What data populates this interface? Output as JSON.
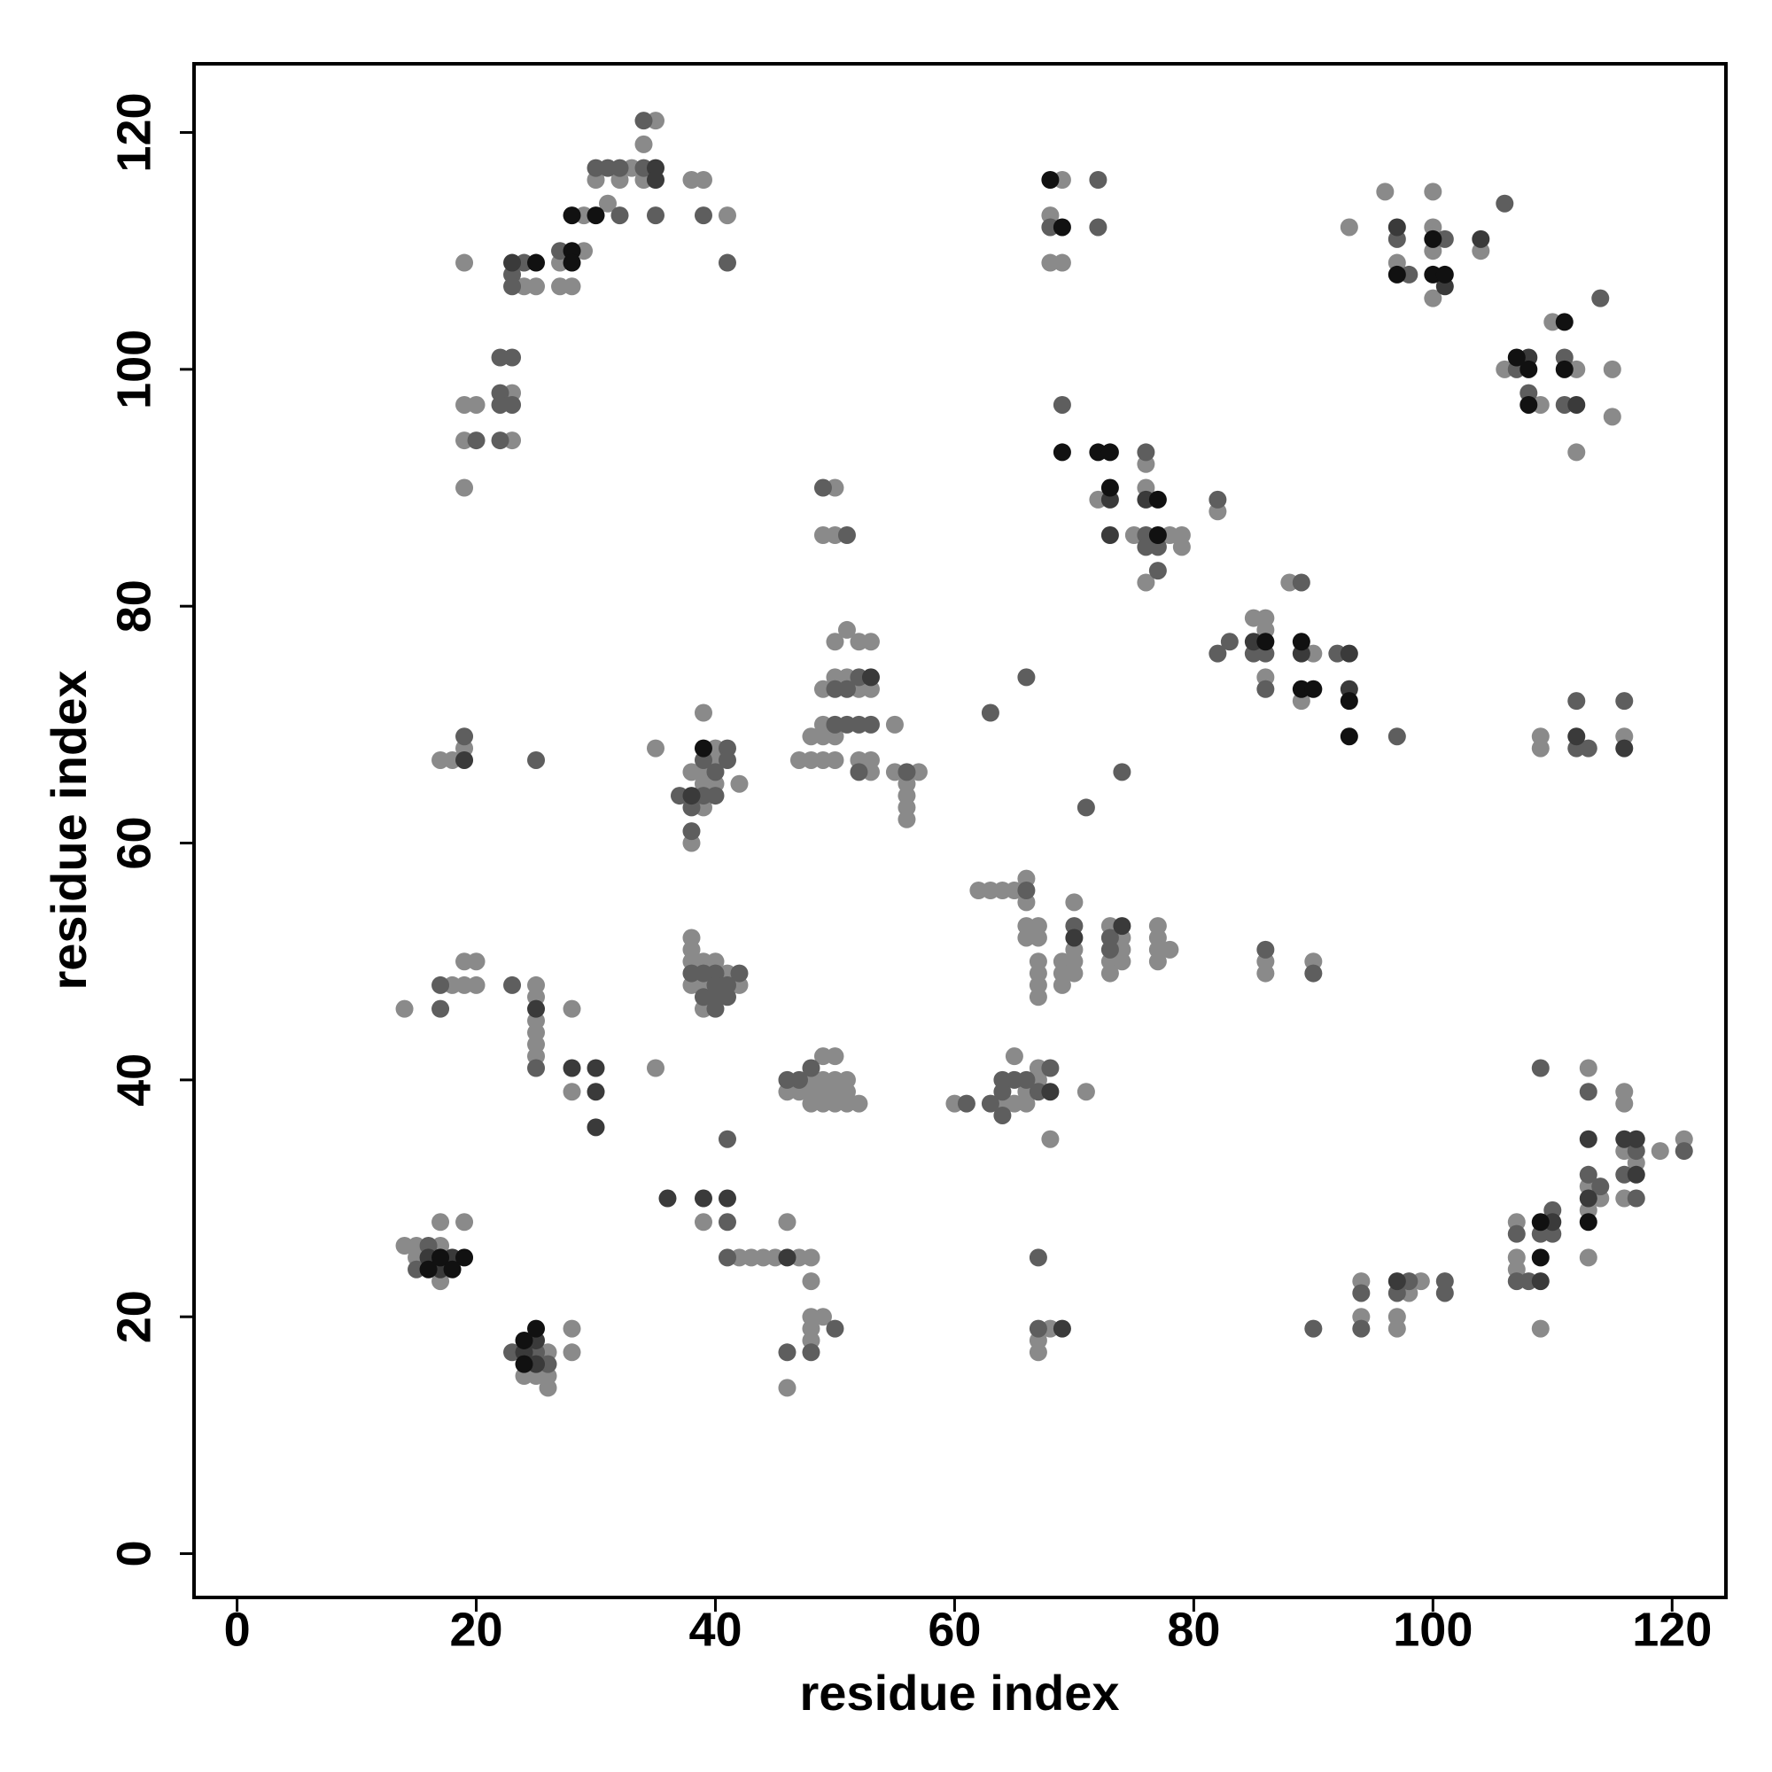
{
  "chart_data": {
    "type": "scatter",
    "xlabel": "residue index",
    "ylabel": "residue index",
    "xlim": [
      -3.6,
      124.5
    ],
    "ylim": [
      -3.7,
      125.8
    ],
    "xticks": [
      0,
      20,
      40,
      60,
      80,
      100,
      120
    ],
    "yticks": [
      0,
      20,
      40,
      60,
      80,
      100,
      120
    ],
    "grid": false,
    "series": [
      {
        "color": "#8a8a8a",
        "x": [
          19,
          24,
          25,
          27,
          27,
          28,
          29,
          29,
          30,
          31,
          32,
          33,
          34,
          34,
          35,
          38,
          39,
          41,
          23,
          23,
          19,
          20,
          19,
          19,
          69,
          68,
          68,
          69,
          72,
          76,
          76,
          75,
          78,
          79,
          79,
          76,
          82,
          50,
          49,
          50,
          93,
          96,
          97,
          100,
          100,
          100,
          100,
          104,
          106,
          109,
          110,
          112,
          112,
          115,
          115,
          85,
          86,
          86,
          86,
          88,
          90,
          89,
          109,
          109,
          116,
          51,
          50,
          52,
          53,
          49,
          50,
          51,
          52,
          53,
          49,
          48,
          49,
          50,
          47,
          48,
          49,
          50,
          52,
          53,
          53,
          55,
          55,
          57,
          56,
          56,
          56,
          56,
          39,
          40,
          40,
          38,
          39,
          39,
          40,
          42,
          39,
          38,
          35,
          17,
          18,
          19,
          62,
          63,
          64,
          65,
          66,
          66,
          66,
          67,
          66,
          67,
          67,
          67,
          67,
          67,
          69,
          70,
          69,
          69,
          70,
          70,
          70,
          73,
          74,
          74,
          73,
          74,
          73,
          77,
          77,
          77,
          78,
          77,
          86,
          86,
          90,
          38,
          38,
          38,
          39,
          40,
          41,
          38,
          39,
          42,
          39,
          14,
          18,
          19,
          20,
          19,
          20,
          25,
          25,
          25,
          25,
          25,
          25,
          28,
          28,
          35,
          49,
          50,
          48,
          49,
          50,
          51,
          46,
          47,
          48,
          49,
          50,
          51,
          48,
          49,
          50,
          51,
          52,
          60,
          64,
          65,
          66,
          67,
          67,
          71,
          65,
          66,
          68,
          113,
          116,
          116,
          116,
          119,
          121,
          117,
          113,
          114,
          116,
          113,
          107,
          107,
          107,
          113,
          109,
          94,
          94,
          98,
          99,
          97,
          97,
          14,
          15,
          15,
          17,
          17,
          17,
          19,
          26,
          24,
          25,
          26,
          26,
          28,
          28,
          39,
          42,
          43,
          44,
          45,
          47,
          48,
          46,
          48,
          48,
          48,
          49,
          48,
          46,
          68,
          67,
          67
        ],
        "y": [
          109,
          107,
          107,
          109,
          107,
          107,
          110,
          113,
          116,
          114,
          116,
          117,
          116,
          119,
          121,
          116,
          116,
          113,
          98,
          94,
          97,
          97,
          94,
          90,
          116,
          113,
          109,
          109,
          89,
          92,
          90,
          86,
          86,
          86,
          85,
          82,
          88,
          90,
          86,
          86,
          112,
          115,
          109,
          115,
          112,
          110,
          106,
          110,
          100,
          97,
          104,
          100,
          93,
          100,
          96,
          79,
          79,
          78,
          74,
          82,
          76,
          72,
          69,
          68,
          69,
          78,
          77,
          77,
          77,
          73,
          74,
          74,
          73,
          73,
          70,
          69,
          69,
          69,
          67,
          67,
          67,
          67,
          67,
          67,
          66,
          70,
          66,
          66,
          65,
          64,
          63,
          62,
          71,
          68,
          67,
          66,
          66,
          65,
          65,
          65,
          63,
          60,
          68,
          67,
          67,
          68,
          56,
          56,
          56,
          56,
          57,
          55,
          53,
          53,
          52,
          52,
          50,
          49,
          48,
          47,
          50,
          50,
          49,
          48,
          55,
          51,
          49,
          53,
          52,
          51,
          50,
          50,
          49,
          53,
          52,
          51,
          51,
          50,
          50,
          49,
          50,
          52,
          51,
          50,
          50,
          50,
          49,
          48,
          48,
          48,
          46,
          46,
          48,
          48,
          48,
          50,
          50,
          48,
          47,
          45,
          44,
          43,
          42,
          46,
          39,
          41,
          42,
          42,
          40,
          40,
          40,
          40,
          39,
          39,
          39,
          39,
          39,
          39,
          38,
          38,
          38,
          38,
          38,
          38,
          38,
          42,
          39,
          40,
          41,
          39,
          38,
          38,
          35,
          41,
          39,
          38,
          34,
          34,
          35,
          33,
          31,
          30,
          30,
          29,
          28,
          25,
          24,
          25,
          19,
          23,
          20,
          22,
          23,
          20,
          19,
          26,
          26,
          25,
          26,
          23,
          28,
          28,
          17,
          15,
          15,
          15,
          14,
          19,
          17,
          28,
          25,
          25,
          25,
          25,
          25,
          25,
          28,
          23,
          20,
          19,
          20,
          18,
          14,
          19,
          18,
          17
        ]
      },
      {
        "color": "#5e5e5e",
        "x": [
          23,
          23,
          24,
          27,
          30,
          31,
          32,
          32,
          34,
          34,
          35,
          39,
          41,
          22,
          23,
          22,
          22,
          23,
          22,
          20,
          68,
          72,
          72,
          69,
          76,
          76,
          76,
          77,
          77,
          82,
          49,
          51,
          97,
          98,
          101,
          106,
          107,
          108,
          111,
          111,
          114,
          82,
          83,
          85,
          86,
          86,
          89,
          92,
          97,
          112,
          112,
          113,
          116,
          52,
          50,
          51,
          50,
          51,
          52,
          53,
          52,
          56,
          41,
          39,
          41,
          40,
          37,
          39,
          40,
          38,
          38,
          19,
          25,
          74,
          71,
          66,
          63,
          66,
          70,
          73,
          73,
          86,
          90,
          42,
          38,
          39,
          40,
          40,
          41,
          39,
          40,
          41,
          40,
          17,
          17,
          23,
          25,
          41,
          47,
          48,
          46,
          61,
          63,
          64,
          64,
          64,
          65,
          66,
          68,
          67,
          109,
          113,
          117,
          121,
          113,
          116,
          114,
          117,
          110,
          109,
          110,
          107,
          107,
          108,
          94,
          94,
          97,
          98,
          101,
          101,
          90,
          16,
          15,
          23,
          25,
          26,
          41,
          41,
          50,
          46,
          48,
          67,
          67
        ],
        "y": [
          108,
          107,
          109,
          110,
          117,
          117,
          117,
          113,
          117,
          121,
          113,
          113,
          109,
          101,
          101,
          98,
          97,
          97,
          94,
          94,
          112,
          116,
          112,
          97,
          93,
          86,
          85,
          85,
          83,
          89,
          90,
          86,
          111,
          108,
          111,
          114,
          100,
          98,
          101,
          97,
          106,
          76,
          77,
          76,
          76,
          73,
          82,
          76,
          69,
          72,
          68,
          68,
          72,
          74,
          73,
          73,
          70,
          70,
          70,
          70,
          66,
          66,
          68,
          67,
          67,
          66,
          64,
          64,
          64,
          63,
          61,
          69,
          67,
          66,
          63,
          74,
          71,
          56,
          53,
          52,
          51,
          51,
          49,
          49,
          49,
          49,
          49,
          48,
          48,
          47,
          47,
          47,
          46,
          48,
          46,
          48,
          41,
          35,
          40,
          41,
          40,
          38,
          38,
          37,
          39,
          40,
          40,
          40,
          41,
          39,
          41,
          39,
          34,
          34,
          32,
          32,
          31,
          30,
          29,
          27,
          27,
          27,
          23,
          23,
          22,
          19,
          22,
          23,
          23,
          22,
          19,
          26,
          24,
          17,
          17,
          16,
          28,
          25,
          19,
          17,
          17,
          25,
          19
        ]
      },
      {
        "color": "#3a3a3a",
        "x": [
          23,
          35,
          35,
          73,
          76,
          73,
          97,
          101,
          104,
          108,
          112,
          85,
          89,
          93,
          93,
          53,
          38,
          19,
          112,
          116,
          70,
          74,
          25,
          28,
          30,
          30,
          30,
          68,
          113,
          116,
          117,
          117,
          113,
          110,
          109,
          97,
          16,
          18,
          17,
          25,
          24,
          25,
          36,
          39,
          41,
          46,
          69
        ],
        "y": [
          109,
          117,
          116,
          89,
          89,
          86,
          112,
          107,
          111,
          101,
          97,
          77,
          76,
          76,
          73,
          74,
          64,
          67,
          69,
          68,
          52,
          53,
          46,
          41,
          41,
          39,
          36,
          39,
          35,
          35,
          35,
          32,
          30,
          28,
          23,
          23,
          25,
          25,
          24,
          18,
          17,
          16,
          30,
          30,
          30,
          25,
          19
        ]
      },
      {
        "color": "#111111",
        "x": [
          25,
          28,
          28,
          28,
          30,
          68,
          69,
          69,
          72,
          73,
          73,
          77,
          77,
          97,
          100,
          100,
          101,
          107,
          108,
          108,
          111,
          111,
          86,
          89,
          89,
          90,
          93,
          93,
          39,
          109,
          113,
          109,
          17,
          19,
          16,
          18,
          24,
          25,
          24
        ],
        "y": [
          109,
          110,
          109,
          113,
          113,
          116,
          112,
          93,
          93,
          93,
          90,
          89,
          86,
          108,
          111,
          108,
          108,
          101,
          100,
          97,
          104,
          100,
          77,
          77,
          73,
          73,
          72,
          69,
          68,
          28,
          28,
          25,
          25,
          25,
          24,
          24,
          18,
          19,
          16
        ]
      }
    ]
  }
}
